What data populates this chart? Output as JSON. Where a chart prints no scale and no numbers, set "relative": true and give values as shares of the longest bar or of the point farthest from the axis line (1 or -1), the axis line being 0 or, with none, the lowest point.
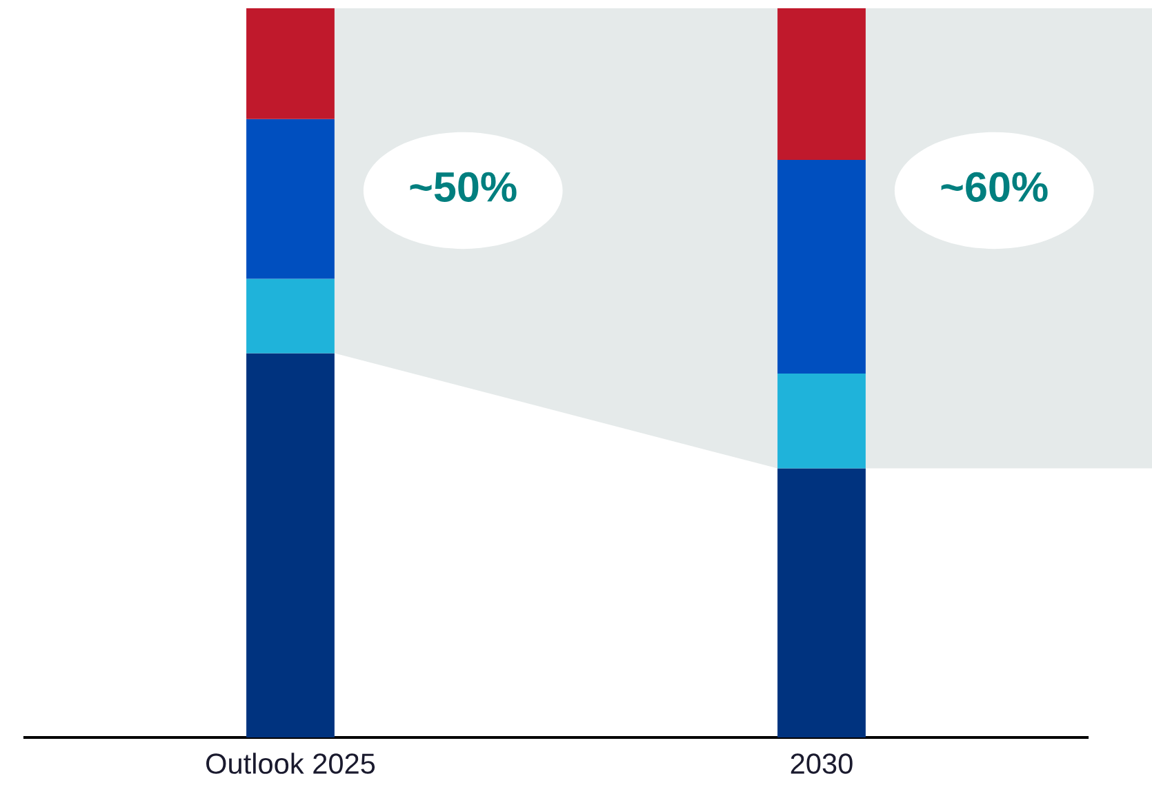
{
  "chart_data": {
    "type": "bar",
    "stacked": true,
    "relative": true,
    "categories": [
      "Outlook 2025",
      "2030"
    ],
    "series": [
      {
        "color": "#00337f",
        "values": [
          0.527,
          0.369
        ]
      },
      {
        "color": "#1fb3da",
        "values": [
          0.102,
          0.13
        ]
      },
      {
        "color": "#004fbf",
        "values": [
          0.219,
          0.293
        ]
      },
      {
        "color": "#c0192c",
        "values": [
          0.152,
          0.208
        ]
      }
    ],
    "annotations": [
      "~50%",
      "~60%"
    ]
  }
}
